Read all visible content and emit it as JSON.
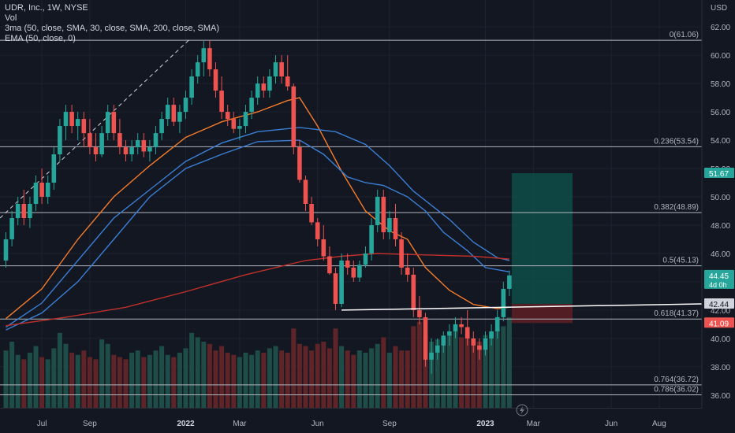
{
  "legend": {
    "title": "UDR, Inc., 1W, NYSE",
    "vol": "Vol",
    "ma3": "3ma (50, close, SMA, 30, close, SMA, 200, close, SMA)",
    "ema": "EMA (50, close, 0)"
  },
  "currency": "USD",
  "colors": {
    "background": "#131722",
    "up": "#26a69a",
    "down": "#ef5350",
    "sma50": "#f57c2a",
    "sma30": "#3a7fd5",
    "sma200": "#c0302b",
    "fib": "#b2b5be",
    "axis_text": "#b2b5be",
    "target_zone": "#0e4d48",
    "stop_zone": "#5a1f23"
  },
  "chart_data": {
    "type": "candlestick",
    "symbol": "UDR",
    "interval": "1W",
    "ylim": [
      35.1,
      63.9
    ],
    "y_ticks": [
      36.0,
      38.0,
      40.0,
      42.0,
      44.0,
      46.0,
      48.0,
      50.0,
      52.0,
      54.0,
      56.0,
      58.0,
      60.0,
      62.0
    ],
    "x_ticks": [
      "Jul",
      "Sep",
      "2022",
      "Mar",
      "Jun",
      "Sep",
      "2023",
      "Mar",
      "Jun",
      "Aug"
    ],
    "price_labels": [
      {
        "value": 51.67,
        "text": "51.67",
        "color": "#26a69a"
      },
      {
        "value": 44.45,
        "text": "44.45",
        "sub": "4d 0h",
        "color": "#26a69a"
      },
      {
        "value": 42.44,
        "text": "42.44",
        "color": "#d1d4dc"
      },
      {
        "value": 41.09,
        "text": "41.09",
        "color": "#ef5350"
      }
    ],
    "fib_levels": [
      {
        "ratio": "0",
        "value": 61.06,
        "label": "0(61.06)"
      },
      {
        "ratio": "0.236",
        "value": 53.54,
        "label": "0.236(53.54)"
      },
      {
        "ratio": "0.382",
        "value": 48.89,
        "label": "0.382(48.89)"
      },
      {
        "ratio": "0.5",
        "value": 45.13,
        "label": "0.5(45.13)"
      },
      {
        "ratio": "0.618",
        "value": 41.37,
        "label": "0.618(41.37)"
      },
      {
        "ratio": "0.764",
        "value": 36.72,
        "label": "0.764(36.72)"
      },
      {
        "ratio": "0.786",
        "value": 36.02,
        "label": "0.786(36.02)"
      }
    ],
    "candles": [
      [
        45.5,
        47.5,
        45.0,
        47.0
      ],
      [
        47.0,
        49.0,
        46.5,
        48.5
      ],
      [
        48.5,
        50.0,
        48.0,
        49.5
      ],
      [
        49.5,
        50.5,
        48.0,
        48.5
      ],
      [
        48.5,
        50.0,
        47.8,
        49.5
      ],
      [
        49.5,
        51.5,
        49.0,
        51.0
      ],
      [
        51.0,
        52.0,
        49.5,
        50.0
      ],
      [
        50.0,
        51.5,
        49.5,
        51.0
      ],
      [
        51.0,
        53.5,
        50.5,
        53.0
      ],
      [
        53.0,
        55.5,
        52.5,
        55.0
      ],
      [
        55.0,
        56.5,
        54.0,
        56.0
      ],
      [
        56.0,
        56.5,
        54.5,
        55.0
      ],
      [
        55.0,
        56.0,
        54.0,
        55.5
      ],
      [
        55.5,
        56.0,
        53.5,
        54.5
      ],
      [
        54.5,
        55.5,
        53.0,
        53.5
      ],
      [
        53.5,
        54.5,
        52.5,
        53.0
      ],
      [
        53.0,
        55.0,
        52.8,
        54.5
      ],
      [
        54.5,
        56.5,
        54.0,
        56.0
      ],
      [
        56.0,
        56.5,
        54.0,
        54.5
      ],
      [
        54.5,
        55.5,
        53.0,
        53.5
      ],
      [
        53.5,
        54.0,
        52.5,
        53.0
      ],
      [
        53.0,
        54.0,
        52.5,
        53.5
      ],
      [
        53.5,
        54.5,
        53.0,
        54.0
      ],
      [
        54.0,
        54.5,
        52.8,
        53.2
      ],
      [
        53.2,
        54.0,
        52.5,
        53.5
      ],
      [
        53.5,
        55.0,
        53.0,
        54.5
      ],
      [
        54.5,
        56.0,
        54.0,
        55.5
      ],
      [
        55.5,
        57.0,
        55.0,
        56.5
      ],
      [
        56.5,
        57.0,
        55.0,
        55.3
      ],
      [
        55.3,
        56.5,
        54.5,
        56.0
      ],
      [
        56.0,
        57.5,
        55.5,
        57.0
      ],
      [
        57.0,
        59.0,
        56.5,
        58.5
      ],
      [
        58.5,
        60.0,
        58.0,
        59.5
      ],
      [
        59.5,
        61.0,
        58.5,
        60.5
      ],
      [
        60.5,
        61.06,
        58.5,
        59.0
      ],
      [
        59.0,
        59.5,
        57.0,
        57.5
      ],
      [
        57.5,
        58.5,
        55.5,
        56.0
      ],
      [
        56.0,
        56.5,
        55.0,
        55.5
      ],
      [
        55.5,
        56.0,
        54.5,
        54.8
      ],
      [
        54.8,
        55.5,
        54.0,
        55.0
      ],
      [
        55.0,
        56.5,
        54.5,
        56.0
      ],
      [
        56.0,
        57.5,
        55.5,
        57.0
      ],
      [
        57.0,
        58.5,
        56.5,
        58.0
      ],
      [
        58.0,
        58.5,
        57.0,
        57.5
      ],
      [
        57.5,
        59.0,
        57.0,
        58.5
      ],
      [
        58.5,
        60.0,
        58.0,
        59.5
      ],
      [
        59.5,
        60.0,
        58.0,
        58.5
      ],
      [
        58.5,
        60.0,
        57.5,
        57.8
      ],
      [
        57.8,
        58.0,
        53.0,
        53.5
      ],
      [
        53.5,
        54.0,
        51.0,
        51.2
      ],
      [
        51.2,
        51.5,
        49.0,
        49.5
      ],
      [
        49.5,
        50.0,
        48.0,
        48.2
      ],
      [
        48.2,
        48.5,
        46.5,
        47.0
      ],
      [
        47.0,
        48.0,
        45.5,
        45.8
      ],
      [
        45.8,
        46.5,
        44.5,
        44.6
      ],
      [
        44.6,
        45.0,
        42.0,
        42.44
      ],
      [
        42.44,
        46.0,
        42.2,
        45.5
      ],
      [
        45.5,
        46.0,
        44.5,
        45.0
      ],
      [
        45.0,
        45.5,
        44.0,
        44.3
      ],
      [
        44.3,
        45.5,
        44.0,
        45.2
      ],
      [
        45.2,
        46.5,
        45.0,
        46.0
      ],
      [
        46.0,
        48.5,
        45.5,
        48.0
      ],
      [
        48.0,
        50.5,
        47.5,
        50.0
      ],
      [
        50.0,
        50.5,
        47.0,
        47.5
      ],
      [
        47.5,
        49.0,
        47.0,
        48.5
      ],
      [
        48.5,
        49.5,
        46.5,
        47.0
      ],
      [
        47.0,
        47.5,
        44.5,
        45.0
      ],
      [
        45.0,
        46.0,
        44.0,
        44.5
      ],
      [
        44.5,
        45.0,
        41.5,
        42.0
      ],
      [
        42.0,
        43.0,
        41.0,
        41.5
      ],
      [
        41.5,
        41.8,
        38.0,
        38.5
      ],
      [
        38.5,
        40.0,
        37.5,
        39.0
      ],
      [
        39.0,
        40.0,
        38.5,
        39.5
      ],
      [
        39.5,
        40.5,
        39.0,
        40.2
      ],
      [
        40.2,
        41.0,
        39.5,
        40.5
      ],
      [
        40.5,
        41.5,
        40.0,
        41.0
      ],
      [
        41.0,
        41.5,
        40.3,
        40.8
      ],
      [
        40.8,
        42.0,
        39.5,
        40.0
      ],
      [
        40.0,
        40.5,
        39.0,
        39.5
      ],
      [
        39.5,
        40.0,
        38.5,
        39.2
      ],
      [
        39.2,
        40.5,
        38.8,
        40.0
      ],
      [
        40.0,
        41.0,
        39.5,
        40.5
      ],
      [
        40.5,
        42.0,
        40.0,
        41.5
      ],
      [
        41.5,
        44.0,
        41.2,
        43.5
      ],
      [
        43.5,
        44.8,
        43.0,
        44.45
      ]
    ],
    "volume": [
      2.6,
      3.0,
      2.4,
      2.2,
      2.5,
      2.8,
      2.3,
      2.2,
      2.7,
      3.4,
      2.9,
      2.5,
      2.4,
      2.6,
      2.3,
      2.2,
      3.1,
      2.9,
      2.4,
      2.3,
      2.2,
      2.5,
      2.6,
      2.3,
      2.4,
      2.6,
      2.8,
      2.4,
      2.3,
      2.5,
      2.7,
      3.4,
      3.2,
      3.0,
      2.9,
      2.6,
      2.8,
      2.5,
      2.4,
      2.3,
      2.5,
      2.4,
      2.6,
      2.5,
      2.7,
      2.8,
      2.6,
      2.5,
      3.6,
      2.9,
      2.8,
      2.6,
      2.9,
      3.0,
      2.7,
      3.6,
      2.8,
      2.6,
      2.4,
      2.6,
      2.5,
      2.7,
      2.9,
      3.2,
      2.5,
      2.8,
      2.6,
      2.6,
      3.7,
      3.9,
      3.3,
      3.0,
      3.1,
      3.2,
      3.3,
      3.5,
      3.2,
      3.4,
      3.1,
      3.0,
      3.3,
      3.4,
      3.6,
      3.7,
      4.1
    ],
    "series": [
      {
        "key": "sma50",
        "points": [
          [
            0,
            41.4
          ],
          [
            6,
            43.5
          ],
          [
            12,
            47.0
          ],
          [
            18,
            50.0
          ],
          [
            24,
            52.2
          ],
          [
            30,
            54.2
          ],
          [
            36,
            55.3
          ],
          [
            42,
            56.0
          ],
          [
            47,
            56.8
          ],
          [
            49,
            57.0
          ],
          [
            52,
            55.0
          ],
          [
            56,
            51.8
          ],
          [
            60,
            49.0
          ],
          [
            64,
            47.6
          ],
          [
            67,
            47.0
          ],
          [
            70,
            45.0
          ],
          [
            74,
            43.4
          ],
          [
            78,
            42.4
          ],
          [
            82,
            42.1
          ],
          [
            84,
            42.2
          ]
        ]
      },
      {
        "key": "sma30",
        "points": [
          [
            0,
            40.8
          ],
          [
            6,
            42.5
          ],
          [
            12,
            45.5
          ],
          [
            18,
            48.5
          ],
          [
            24,
            50.5
          ],
          [
            30,
            52.5
          ],
          [
            36,
            53.8
          ],
          [
            42,
            54.6
          ],
          [
            49,
            54.9
          ],
          [
            55,
            54.6
          ],
          [
            60,
            53.7
          ],
          [
            64,
            52.2
          ],
          [
            68,
            50.4
          ],
          [
            74,
            48.4
          ],
          [
            78,
            46.8
          ],
          [
            82,
            45.7
          ],
          [
            84,
            45.5
          ]
        ]
      },
      {
        "key": "sma30b",
        "points": [
          [
            0,
            40.6
          ],
          [
            6,
            41.8
          ],
          [
            12,
            44.0
          ],
          [
            18,
            47.0
          ],
          [
            24,
            50.0
          ],
          [
            30,
            52.0
          ],
          [
            36,
            53.0
          ],
          [
            42,
            53.9
          ],
          [
            49,
            54.0
          ],
          [
            53,
            53.0
          ],
          [
            57,
            51.4
          ],
          [
            60,
            51.0
          ],
          [
            63,
            50.8
          ],
          [
            67,
            50.0
          ],
          [
            70,
            49.0
          ],
          [
            73,
            47.5
          ],
          [
            77,
            46.2
          ],
          [
            80,
            45.0
          ],
          [
            84,
            44.7
          ]
        ]
      },
      {
        "key": "sma200",
        "points": [
          [
            0,
            40.9
          ],
          [
            10,
            41.5
          ],
          [
            20,
            42.2
          ],
          [
            30,
            43.3
          ],
          [
            40,
            44.5
          ],
          [
            50,
            45.5
          ],
          [
            56,
            45.8
          ],
          [
            62,
            46.0
          ],
          [
            70,
            45.9
          ],
          [
            78,
            45.8
          ],
          [
            84,
            45.6
          ]
        ]
      }
    ],
    "support_line": {
      "start_index": 56,
      "start_value": 42.0,
      "end_value": 42.44
    },
    "position": {
      "entry": 42.44,
      "target": 51.67,
      "stop": 41.09
    },
    "previous_trend": {
      "from_value": 48.5,
      "to_value": 61.06
    }
  }
}
